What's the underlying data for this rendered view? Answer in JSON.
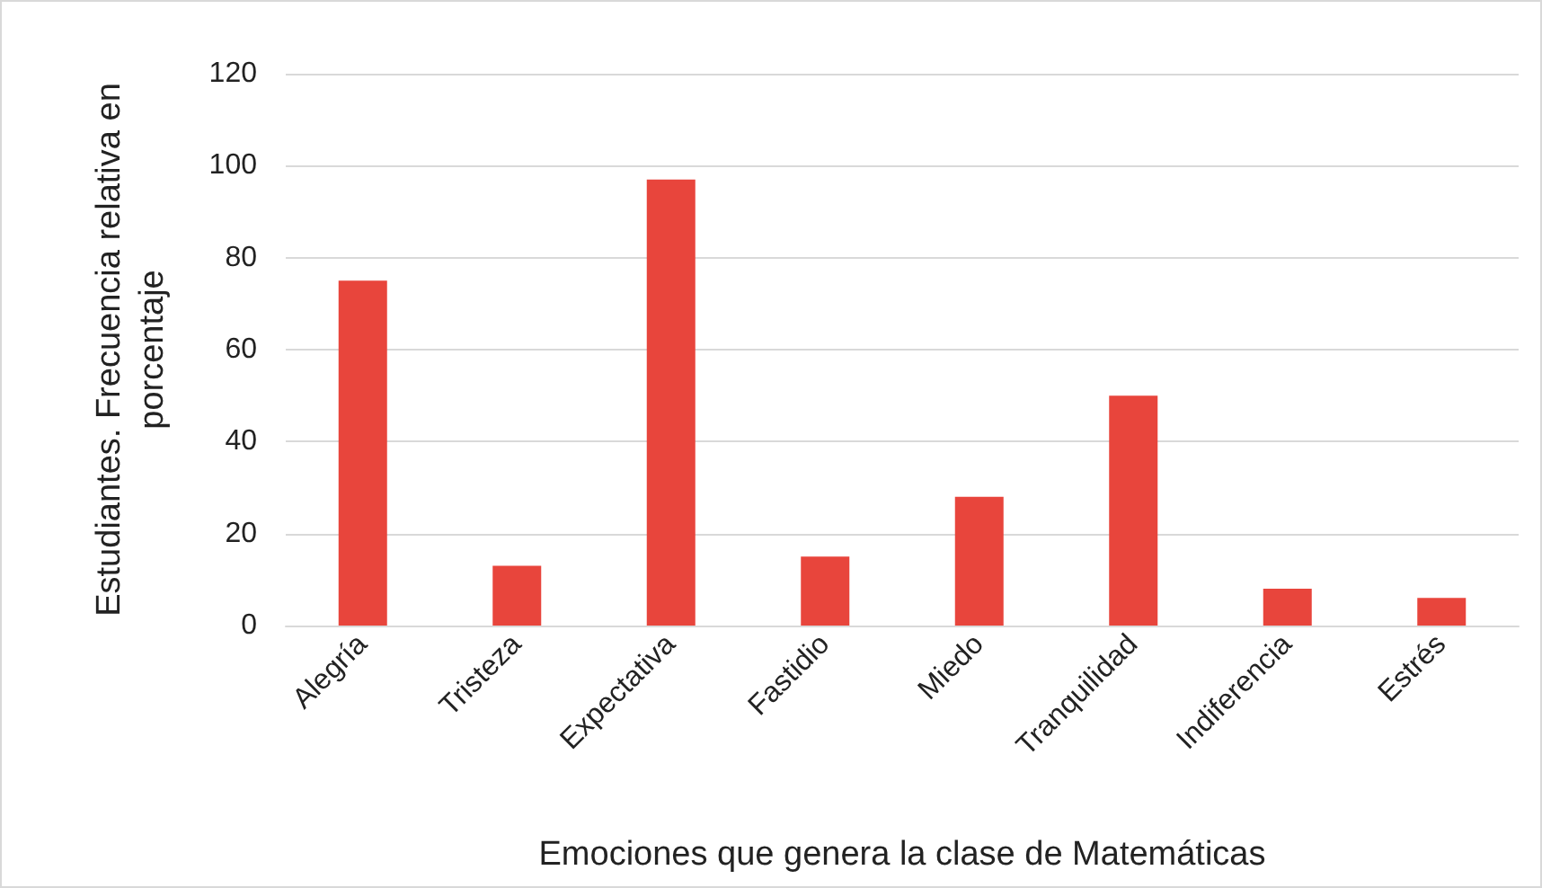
{
  "chart_data": {
    "type": "bar",
    "xlabel": "Emociones que genera la clase de Matemáticas",
    "ylabel": "Estudiantes. Frecuencia relativa en porcentaje",
    "categories": [
      "Alegría",
      "Tristeza",
      "Expectativa",
      "Fastidio",
      "Miedo",
      "Tranquilidad",
      "Indiferencia",
      "Estrés"
    ],
    "values": [
      75,
      13,
      97,
      15,
      28,
      50,
      8,
      6
    ],
    "color": "#e8453c",
    "ylim": [
      0,
      120
    ],
    "yticks": [
      0,
      20,
      40,
      60,
      80,
      100,
      120
    ],
    "grid": "y"
  }
}
